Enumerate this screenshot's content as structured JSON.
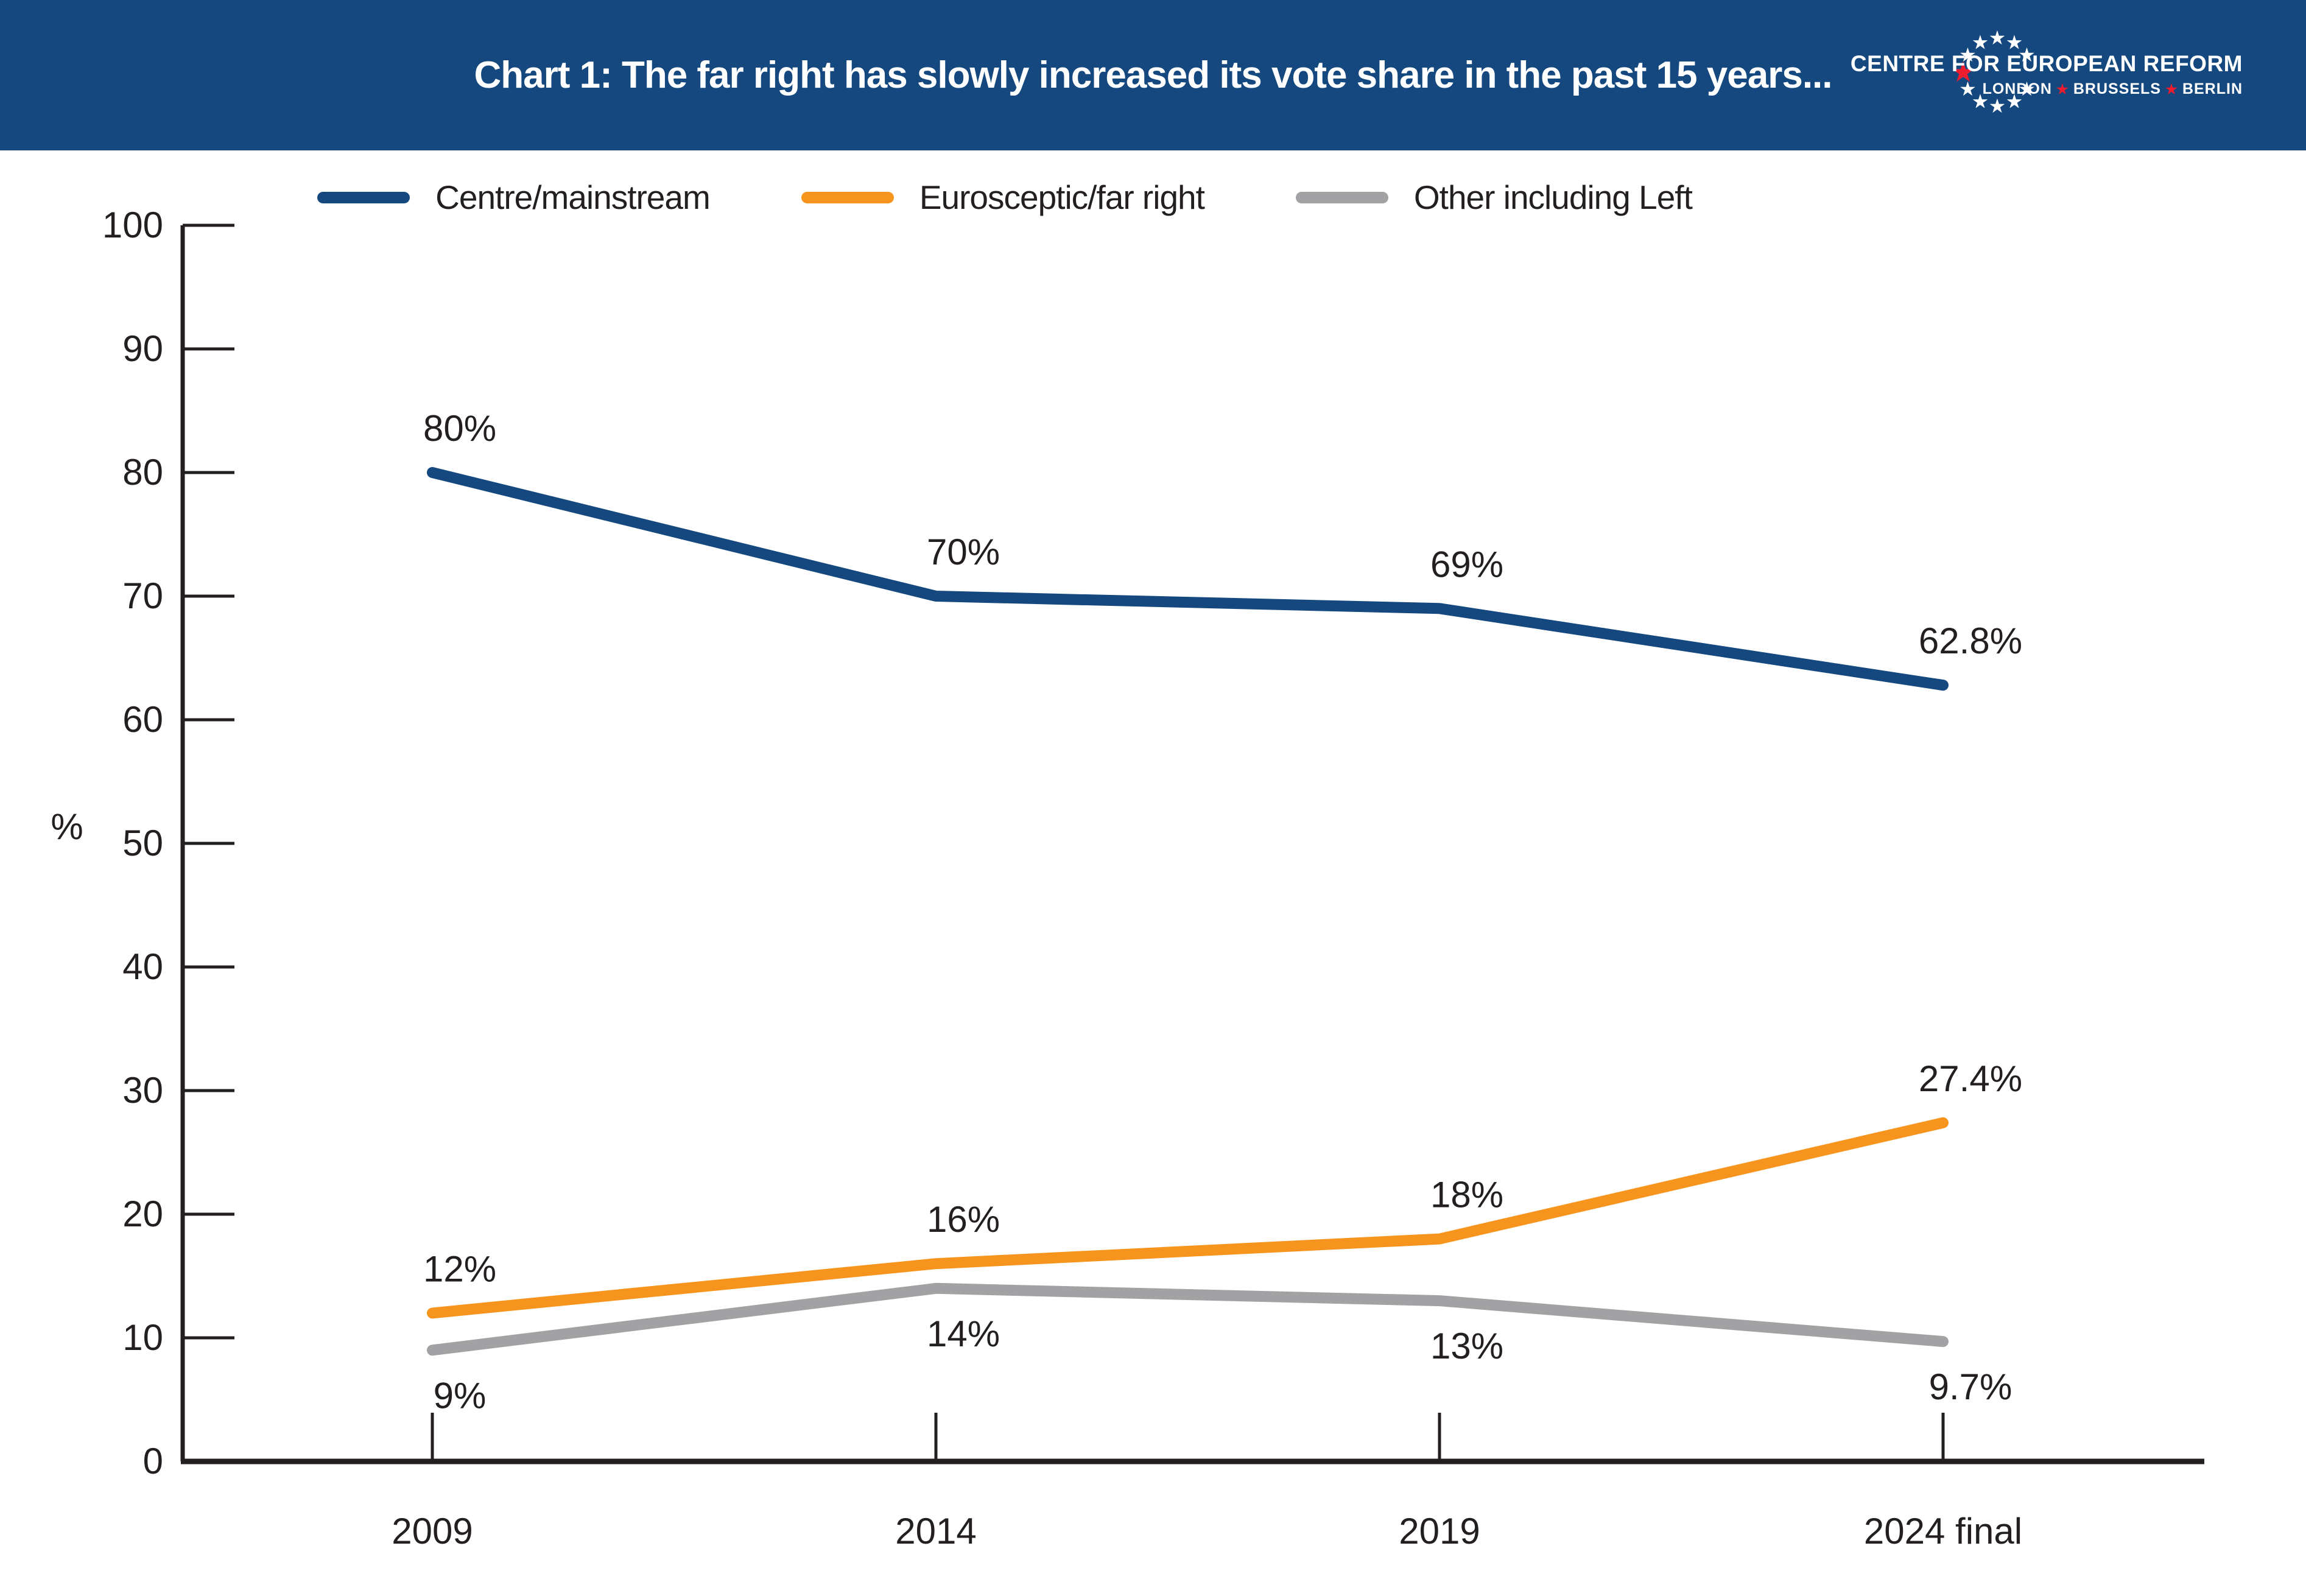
{
  "header": {
    "title": "Chart 1: The far right has slowly increased its vote share in the past 15 years..."
  },
  "logo": {
    "line1": "CENTRE FOR EUROPEAN REFORM",
    "cities": [
      "LONDON",
      "BRUSSELS",
      "BERLIN"
    ],
    "star_icon": "star-icon",
    "white_star_color": "#FFFFFF",
    "red_star_color": "#ED1C2E"
  },
  "legend": [
    {
      "label": "Centre/mainstream",
      "color": "#14487E"
    },
    {
      "label": "Eurosceptic/far right",
      "color": "#F7941E"
    },
    {
      "label": "Other including Left",
      "color": "#A2A2A4"
    }
  ],
  "chart_data": {
    "type": "line",
    "title": "Chart 1: The far right has slowly increased its vote share in the past 15 years...",
    "categories": [
      "2009",
      "2014",
      "2019",
      "2024 final"
    ],
    "unit": "%",
    "ylabel": "%",
    "xlabel": "",
    "ylim": [
      0,
      100
    ],
    "ytick_step": 10,
    "grid": false,
    "legend_position": "top",
    "series": [
      {
        "name": "Centre/mainstream",
        "color": "#14487E",
        "values": [
          80,
          70,
          69,
          62.8
        ],
        "labels": [
          "80%",
          "70%",
          "69%",
          "62.8%"
        ],
        "label_position": "above"
      },
      {
        "name": "Eurosceptic/far right",
        "color": "#F7941E",
        "values": [
          12,
          16,
          18,
          27.4
        ],
        "labels": [
          "12%",
          "16%",
          "18%",
          "27.4%"
        ],
        "label_position": "above"
      },
      {
        "name": "Other including Left",
        "color": "#A2A2A4",
        "values": [
          9,
          14,
          13,
          9.7
        ],
        "labels": [
          "9%",
          "14%",
          "13%",
          "9.7%"
        ],
        "label_position": "below"
      }
    ]
  },
  "colors": {
    "header_bg": "#14487E",
    "axis": "#231F20",
    "text": "#231F20"
  }
}
